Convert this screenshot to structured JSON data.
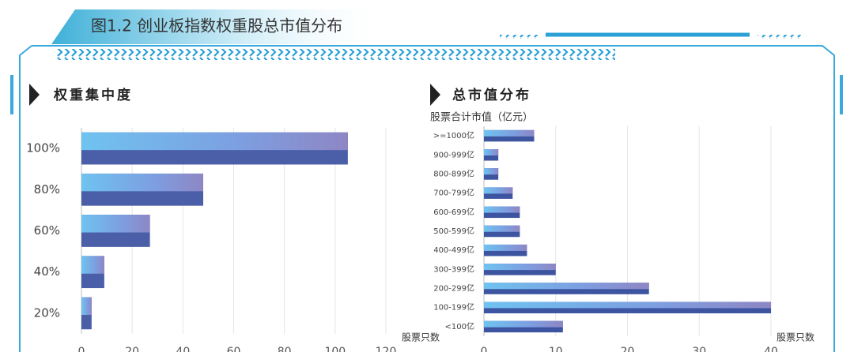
{
  "header": {
    "title": "图1.2 创业板指数权重股总市值分布"
  },
  "chart_data": [
    {
      "type": "bar",
      "orientation": "horizontal",
      "title": "权重集中度",
      "x_label": "股票只数",
      "categories": [
        "100%",
        "80%",
        "60%",
        "40%",
        "20%"
      ],
      "values": [
        105,
        48,
        27,
        9,
        4
      ],
      "color": "#4a5fa8",
      "xlim": [
        0,
        120
      ],
      "xticks": [
        0,
        20,
        40,
        60,
        80,
        100,
        120
      ],
      "grid": true
    },
    {
      "type": "bar",
      "orientation": "horizontal",
      "title": "总市值分布",
      "x_label": "股票只数",
      "y_label": "股票合计市值（亿元）",
      "categories": [
        ">=1000亿",
        "900-999亿",
        "800-899亿",
        "700-799亿",
        "600-699亿",
        "500-599亿",
        "400-499亿",
        "300-399亿",
        "200-299亿",
        "100-199亿",
        "<100亿"
      ],
      "values": [
        7,
        2,
        2,
        4,
        5,
        5,
        6,
        10,
        23,
        40,
        11
      ],
      "color": "#3d54a0",
      "xlim": [
        0,
        40
      ],
      "xticks": [
        0,
        10,
        20,
        30,
        40
      ],
      "grid": true
    }
  ]
}
